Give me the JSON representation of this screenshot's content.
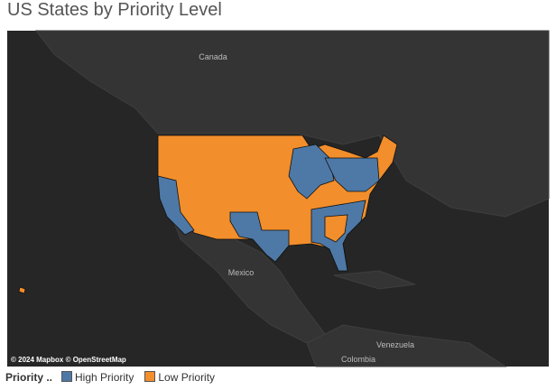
{
  "header": {
    "title": "US States by Priority Level"
  },
  "map": {
    "labels": [
      "Canada",
      "Mexico",
      "Venezuela",
      "Colombia"
    ],
    "attribution": "© 2024 Mapbox © OpenStreetMap"
  },
  "legend": {
    "title": "Priority ..",
    "items": [
      {
        "label": "High Priority",
        "color": "#4e79a7"
      },
      {
        "label": "Low Priority",
        "color": "#f28e2b"
      }
    ]
  }
}
